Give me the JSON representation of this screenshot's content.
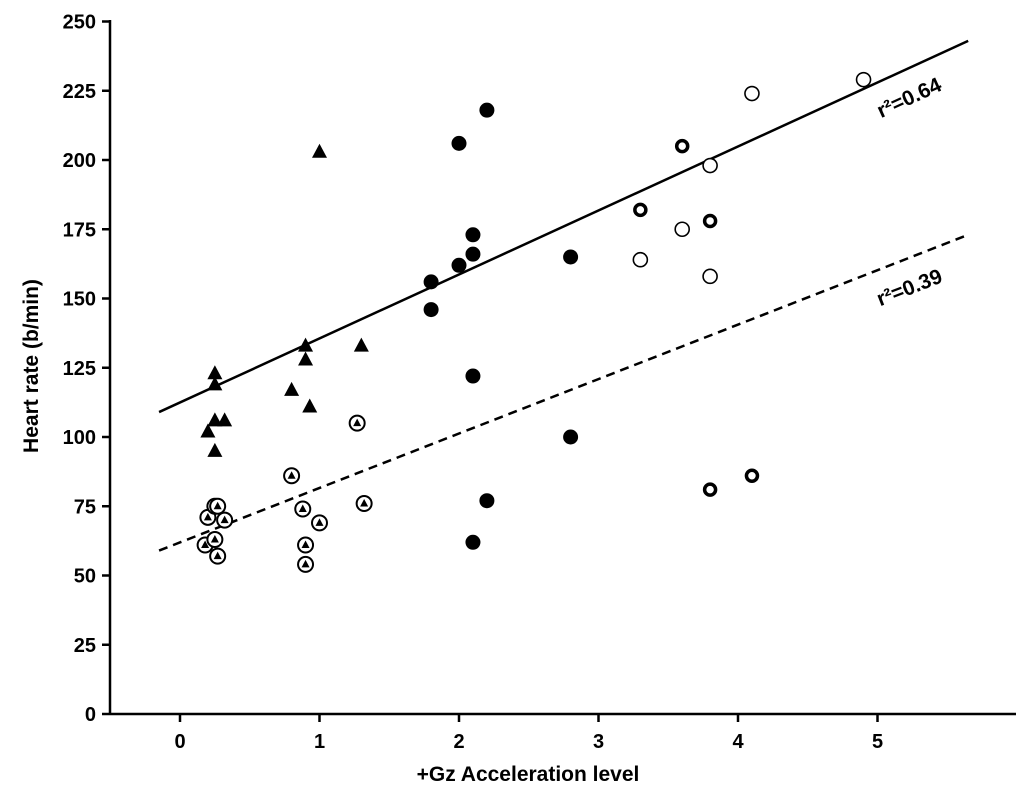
{
  "chart_data": {
    "type": "scatter",
    "title": "",
    "xlabel": "+Gz Acceleration level",
    "ylabel": "Heart rate (b/min)",
    "xlim": [
      -0.5,
      6
    ],
    "ylim": [
      0,
      250
    ],
    "xticks": [
      0,
      1,
      2,
      3,
      4,
      5
    ],
    "yticks": [
      0,
      25,
      50,
      75,
      100,
      125,
      150,
      175,
      200,
      225,
      250
    ],
    "grid": false,
    "legend": "none",
    "series": [
      {
        "marker": "triangle-filled",
        "points": [
          [
            0.25,
            123
          ],
          [
            0.25,
            119
          ],
          [
            0.25,
            106
          ],
          [
            0.2,
            102
          ],
          [
            0.32,
            106
          ],
          [
            0.25,
            95
          ],
          [
            0.8,
            117
          ],
          [
            0.9,
            133
          ],
          [
            0.9,
            128
          ],
          [
            0.93,
            111
          ],
          [
            1.0,
            203
          ],
          [
            1.3,
            133
          ]
        ]
      },
      {
        "marker": "circled-triangle",
        "points": [
          [
            0.18,
            61
          ],
          [
            0.2,
            71
          ],
          [
            0.25,
            75
          ],
          [
            0.27,
            75
          ],
          [
            0.25,
            63
          ],
          [
            0.27,
            57
          ],
          [
            0.32,
            70
          ],
          [
            0.8,
            86
          ],
          [
            0.88,
            74
          ],
          [
            0.9,
            61
          ],
          [
            0.9,
            54
          ],
          [
            1.0,
            69
          ],
          [
            1.27,
            105
          ],
          [
            1.32,
            76
          ]
        ]
      },
      {
        "marker": "filled-circle",
        "points": [
          [
            1.8,
            156
          ],
          [
            1.8,
            146
          ],
          [
            2.0,
            206
          ],
          [
            2.0,
            162
          ],
          [
            2.1,
            173
          ],
          [
            2.1,
            166
          ],
          [
            2.1,
            122
          ],
          [
            2.1,
            62
          ],
          [
            2.2,
            218
          ],
          [
            2.2,
            77
          ],
          [
            2.8,
            165
          ],
          [
            2.8,
            100
          ]
        ]
      },
      {
        "marker": "thick-ring",
        "points": [
          [
            3.3,
            182
          ],
          [
            3.6,
            205
          ],
          [
            3.8,
            178
          ],
          [
            3.8,
            81
          ],
          [
            4.1,
            86
          ]
        ]
      },
      {
        "marker": "open-circle",
        "points": [
          [
            3.3,
            164
          ],
          [
            3.6,
            175
          ],
          [
            3.8,
            198
          ],
          [
            3.8,
            158
          ],
          [
            4.1,
            224
          ],
          [
            4.9,
            229
          ]
        ]
      }
    ],
    "lines": [
      {
        "style": "solid",
        "x": [
          -0.15,
          5.65
        ],
        "y": [
          109,
          243
        ],
        "label": "r²=0.64"
      },
      {
        "style": "dashed",
        "x": [
          -0.15,
          5.65
        ],
        "y": [
          59,
          173
        ],
        "label": "r²=0.39"
      }
    ]
  }
}
